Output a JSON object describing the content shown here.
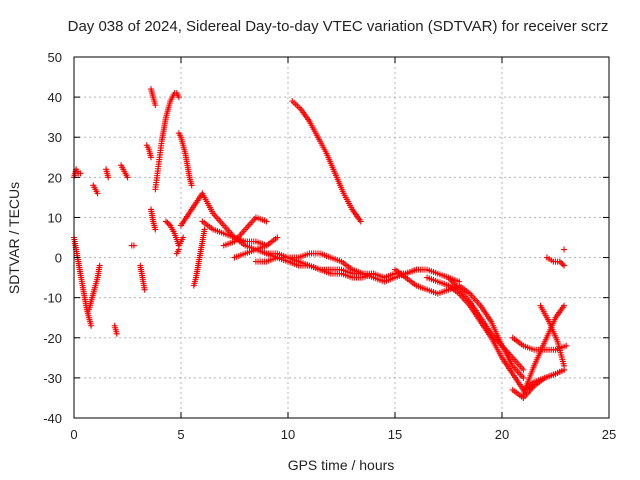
{
  "chart_data": {
    "type": "scatter",
    "title": "Day 038 of 2024, Sidereal Day-to-day VTEC variation (SDTVAR) for receiver scrz",
    "xlabel": "GPS time / hours",
    "ylabel": "SDTVAR / TECUs",
    "xlim": [
      0,
      25
    ],
    "ylim": [
      -40,
      50
    ],
    "x_ticks": [
      "0",
      "5",
      "10",
      "15",
      "20",
      "25"
    ],
    "y_ticks": [
      "-40",
      "-30",
      "-20",
      "-10",
      "0",
      "10",
      "20",
      "30",
      "40",
      "50"
    ],
    "grid": true,
    "marker": "plus",
    "color": "#ff0000",
    "series": [
      {
        "name": "arc-a",
        "x": [
          0.0,
          0.1,
          0.2,
          0.3,
          0.4,
          0.5,
          0.6,
          0.7,
          0.8
        ],
        "y": [
          5,
          2,
          -1,
          -4,
          -7,
          -10,
          -13,
          -15,
          -17
        ]
      },
      {
        "name": "arc-b",
        "x": [
          0.0,
          0.1,
          0.2,
          0.3
        ],
        "y": [
          20,
          22,
          21,
          21
        ]
      },
      {
        "name": "arc-c",
        "x": [
          0.7,
          0.8,
          0.9,
          1.0,
          1.1,
          1.2
        ],
        "y": [
          -13,
          -11,
          -9,
          -7,
          -5,
          -2
        ]
      },
      {
        "name": "arc-d",
        "x": [
          0.9,
          1.0,
          1.1
        ],
        "y": [
          18,
          17,
          16
        ]
      },
      {
        "name": "arc-e",
        "x": [
          1.5,
          1.6
        ],
        "y": [
          22,
          20
        ]
      },
      {
        "name": "arc-f",
        "x": [
          2.2,
          2.3,
          2.4,
          2.5
        ],
        "y": [
          23,
          22,
          21,
          20
        ]
      },
      {
        "name": "arc-g",
        "x": [
          1.9,
          2.0
        ],
        "y": [
          -17,
          -19
        ]
      },
      {
        "name": "arc-h",
        "x": [
          2.7,
          2.8
        ],
        "y": [
          3,
          3
        ]
      },
      {
        "name": "arc-i",
        "x": [
          3.1,
          3.2,
          3.3
        ],
        "y": [
          -2,
          -5,
          -8
        ]
      },
      {
        "name": "arc-j",
        "x": [
          3.4,
          3.5,
          3.6
        ],
        "y": [
          28,
          27,
          25
        ]
      },
      {
        "name": "arc-k",
        "x": [
          3.6,
          3.7,
          3.8
        ],
        "y": [
          42,
          40,
          38
        ]
      },
      {
        "name": "arc-l",
        "x": [
          3.6,
          3.7,
          3.8
        ],
        "y": [
          12,
          9,
          7
        ]
      },
      {
        "name": "arc-m",
        "x": [
          3.8,
          3.9,
          4.0,
          4.1,
          4.2,
          4.3,
          4.4,
          4.5,
          4.6,
          4.7,
          4.8,
          4.9
        ],
        "y": [
          17,
          21,
          25,
          29,
          32,
          35,
          37,
          39,
          40,
          41,
          41,
          40
        ]
      },
      {
        "name": "arc-n",
        "x": [
          4.3,
          4.5,
          4.7,
          4.9,
          5.1
        ],
        "y": [
          9,
          8,
          6,
          3,
          5
        ]
      },
      {
        "name": "arc-o",
        "x": [
          4.8,
          4.9
        ],
        "y": [
          1,
          2
        ]
      },
      {
        "name": "arc-p",
        "x": [
          4.9,
          5.0,
          5.1,
          5.2,
          5.3,
          5.4,
          5.5
        ],
        "y": [
          31,
          30,
          28,
          26,
          23,
          20,
          18
        ]
      },
      {
        "name": "arc-q",
        "x": [
          5.6,
          5.7,
          5.8,
          5.9,
          6.0,
          6.1
        ],
        "y": [
          -7,
          -5,
          -2,
          1,
          4,
          7
        ]
      },
      {
        "name": "arc-r",
        "x": [
          5.0,
          5.5,
          6.0,
          6.5,
          7.0,
          7.5,
          8.0,
          8.5,
          9.0,
          9.5,
          10.0
        ],
        "y": [
          8,
          12,
          16,
          11,
          8,
          5,
          3,
          2,
          1,
          0,
          -1
        ]
      },
      {
        "name": "arc-s",
        "x": [
          6.0,
          6.5,
          7.0,
          7.5,
          8.0,
          8.5,
          9.0
        ],
        "y": [
          9,
          7,
          6,
          5,
          4,
          4,
          3
        ]
      },
      {
        "name": "arc-t",
        "x": [
          7.0,
          7.5,
          8.0,
          8.5,
          9.0
        ],
        "y": [
          3,
          4,
          7,
          10,
          9
        ]
      },
      {
        "name": "arc-u",
        "x": [
          7.5,
          8.0,
          8.5,
          9.0,
          9.5
        ],
        "y": [
          0,
          1,
          2,
          3,
          5
        ]
      },
      {
        "name": "arc-v",
        "x": [
          8.5,
          9.0,
          9.5,
          10.0,
          10.5,
          11.0,
          11.5,
          12.0,
          12.5,
          13.0,
          13.5,
          14.0
        ],
        "y": [
          -1,
          -1,
          0,
          0,
          -1,
          -2,
          -3,
          -4,
          -4,
          -5,
          -5,
          -4
        ]
      },
      {
        "name": "arc-w",
        "x": [
          10.2,
          10.6,
          11.0,
          11.4,
          11.8,
          12.2,
          12.6,
          13.0,
          13.4
        ],
        "y": [
          39,
          37,
          34,
          30,
          26,
          21,
          16,
          12,
          9
        ]
      },
      {
        "name": "arc-x",
        "x": [
          9.0,
          9.5,
          10.0,
          10.5,
          11.0,
          11.5,
          12.0,
          12.5,
          13.0,
          13.5,
          14.0,
          14.5,
          15.0,
          15.5,
          16.0,
          16.5,
          17.0,
          17.5,
          18.0
        ],
        "y": [
          1,
          1,
          0,
          0,
          1,
          1,
          0,
          -1,
          -3,
          -4,
          -5,
          -6,
          -5,
          -4,
          -3,
          -3,
          -4,
          -5,
          -6
        ]
      },
      {
        "name": "arc-y",
        "x": [
          10.0,
          10.5,
          11.0,
          11.5,
          12.0,
          12.5,
          13.0,
          13.5,
          14.0,
          14.5,
          15.0,
          15.5,
          16.0
        ],
        "y": [
          -1,
          -2,
          -2,
          -3,
          -3,
          -3,
          -4,
          -4,
          -4,
          -5,
          -4,
          -4,
          -3
        ]
      },
      {
        "name": "arc-z",
        "x": [
          15.0,
          15.5,
          16.0,
          16.5,
          17.0,
          17.5,
          18.0,
          18.5,
          19.0,
          19.5,
          20.0,
          20.5,
          21.0
        ],
        "y": [
          -3,
          -5,
          -7,
          -8,
          -9,
          -8,
          -7,
          -9,
          -12,
          -16,
          -22,
          -27,
          -30
        ]
      },
      {
        "name": "arc-aa",
        "x": [
          16.5,
          17.0,
          17.5,
          18.0,
          18.5,
          19.0,
          19.5,
          20.0,
          20.5,
          21.0,
          21.5
        ],
        "y": [
          -5,
          -6,
          -7,
          -9,
          -12,
          -16,
          -20,
          -25,
          -29,
          -33,
          -32
        ]
      },
      {
        "name": "arc-ab",
        "x": [
          17.5,
          18.0,
          18.5,
          19.0,
          19.5,
          20.0,
          20.5,
          21.0
        ],
        "y": [
          -5,
          -8,
          -11,
          -15,
          -19,
          -22,
          -25,
          -28
        ]
      },
      {
        "name": "arc-ac",
        "x": [
          20.5,
          21.0,
          21.5,
          22.0,
          22.5,
          23.0
        ],
        "y": [
          -20,
          -22,
          -23,
          -23,
          -23,
          -22
        ]
      },
      {
        "name": "arc-ad",
        "x": [
          20.5,
          21.0,
          21.5,
          22.0,
          22.5,
          22.9
        ],
        "y": [
          -33,
          -35,
          -32,
          -30,
          -29,
          -28
        ]
      },
      {
        "name": "arc-ae",
        "x": [
          21.0,
          21.5,
          22.0,
          22.5,
          22.9
        ],
        "y": [
          -33,
          -31,
          -30,
          -29,
          -28
        ]
      },
      {
        "name": "arc-af",
        "x": [
          21.0,
          21.5,
          22.0,
          22.5,
          22.9
        ],
        "y": [
          -34,
          -27,
          -21,
          -15,
          -12
        ]
      },
      {
        "name": "arc-ag",
        "x": [
          21.8,
          22.2,
          22.6,
          22.9
        ],
        "y": [
          -12,
          -16,
          -21,
          -27
        ]
      },
      {
        "name": "arc-ah",
        "x": [
          22.1,
          22.4,
          22.7,
          22.9
        ],
        "y": [
          0,
          -1,
          -1,
          -2
        ]
      },
      {
        "name": "arc-ai",
        "x": [
          22.9
        ],
        "y": [
          2
        ]
      }
    ]
  }
}
